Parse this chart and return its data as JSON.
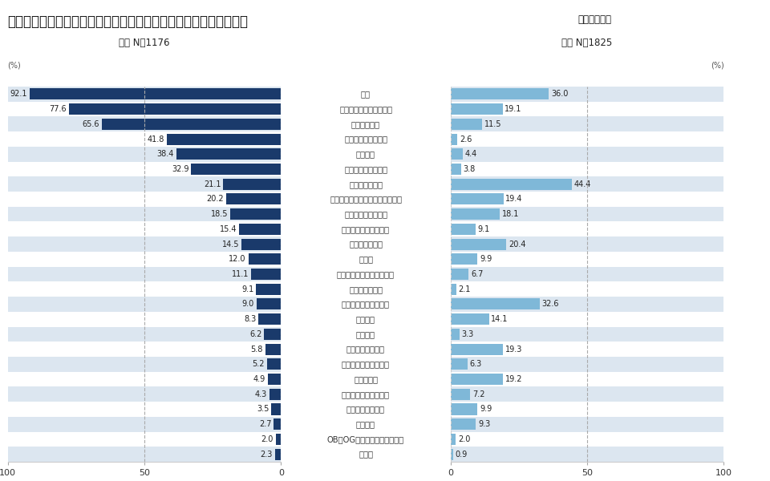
{
  "title": "企業が採用基準で重視する項目と学生が面接等でアピールする項目",
  "title_suffix": "（複数回答）",
  "left_label": "企業 N＝1176",
  "right_label": "学生 N＝1825",
  "categories": [
    "人柄",
    "自社／その企業への熱意",
    "今後の可能性",
    "性格適性検査の結果",
    "基礎学力",
    "能力適性検査の結果",
    "アルバイト経験",
    "大学／大学院で身につけた専門性",
    "学部・学科／研究科",
    "大学／大学院での成績",
    "大学／大学院名",
    "語学力",
    "大学入学以前の経験や活動",
    "知識試験の結果",
    "所属クラブ・サークル",
    "取得資格",
    "履修履歴",
    "所属ゼミ・研究室",
    "インターンシップ経験",
    "趣味・特技",
    "パソコン経験・スキル",
    "ボランティア経験",
    "海外経験",
    "OB・OG・紹介者とのつながり",
    "その他"
  ],
  "company_values": [
    92.1,
    77.6,
    65.6,
    41.8,
    38.4,
    32.9,
    21.1,
    20.2,
    18.5,
    15.4,
    14.5,
    12.0,
    11.1,
    9.1,
    9.0,
    8.3,
    6.2,
    5.8,
    5.2,
    4.9,
    4.3,
    3.5,
    2.7,
    2.0,
    2.3
  ],
  "student_values": [
    36.0,
    19.1,
    11.5,
    2.6,
    4.4,
    3.8,
    44.4,
    19.4,
    18.1,
    9.1,
    20.4,
    9.9,
    6.7,
    2.1,
    32.6,
    14.1,
    3.3,
    19.3,
    6.3,
    19.2,
    7.2,
    9.9,
    9.3,
    2.0,
    0.9
  ],
  "company_color": "#1a3a6b",
  "student_color": "#7fb8d8",
  "bg_color_odd": "#dce6f0",
  "bg_color_even": "#ffffff",
  "axis_max": 100,
  "bar_height": 0.75
}
